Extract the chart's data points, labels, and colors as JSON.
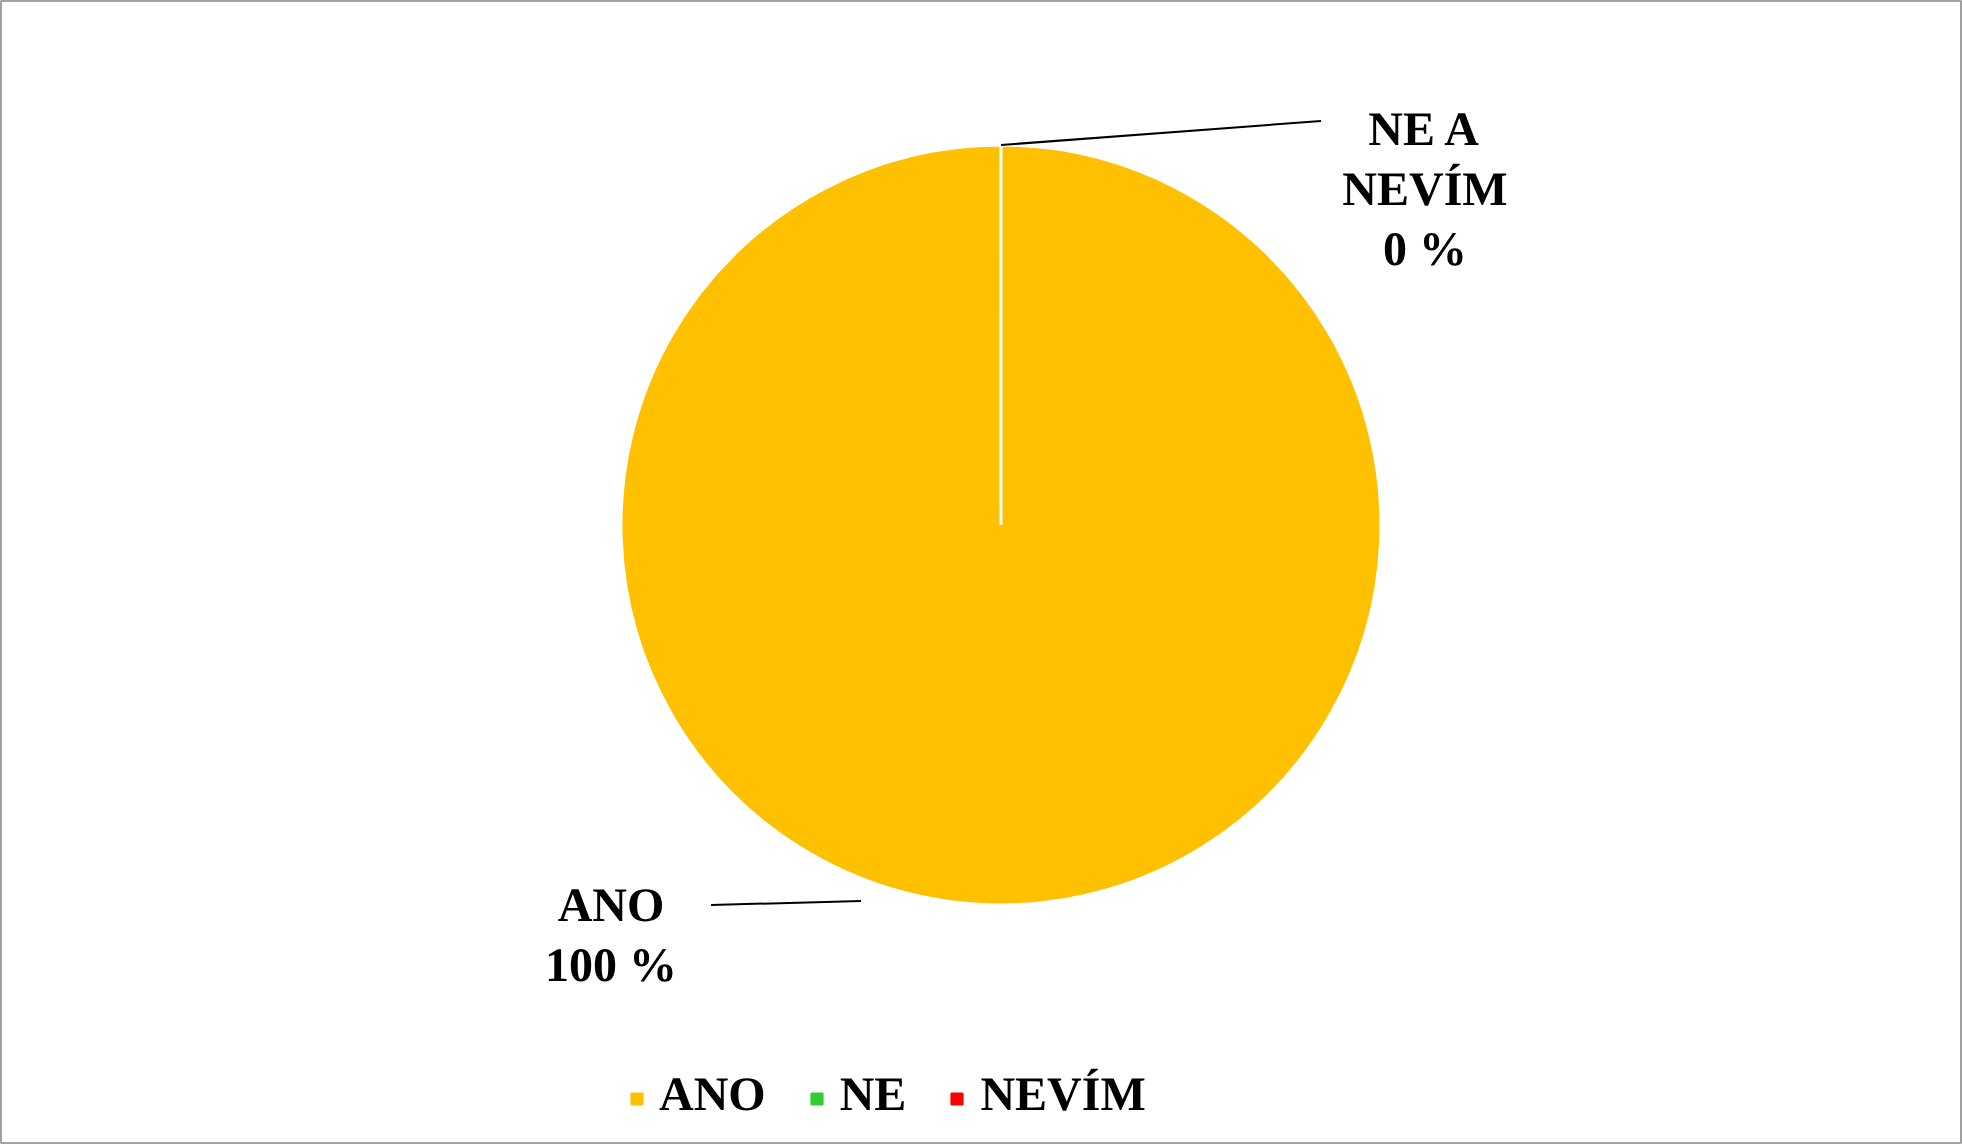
{
  "chart_data": {
    "type": "pie",
    "categories": [
      "ANO",
      "NE",
      "NEVÍM"
    ],
    "values": [
      100,
      0,
      0
    ],
    "colors": [
      "#ffc000",
      "#33cc33",
      "#ff0000"
    ],
    "value_labels": [
      "ANO\n100 %",
      "NE A\nNEVÍM\n0 %",
      null
    ],
    "legend": "bottom"
  }
}
